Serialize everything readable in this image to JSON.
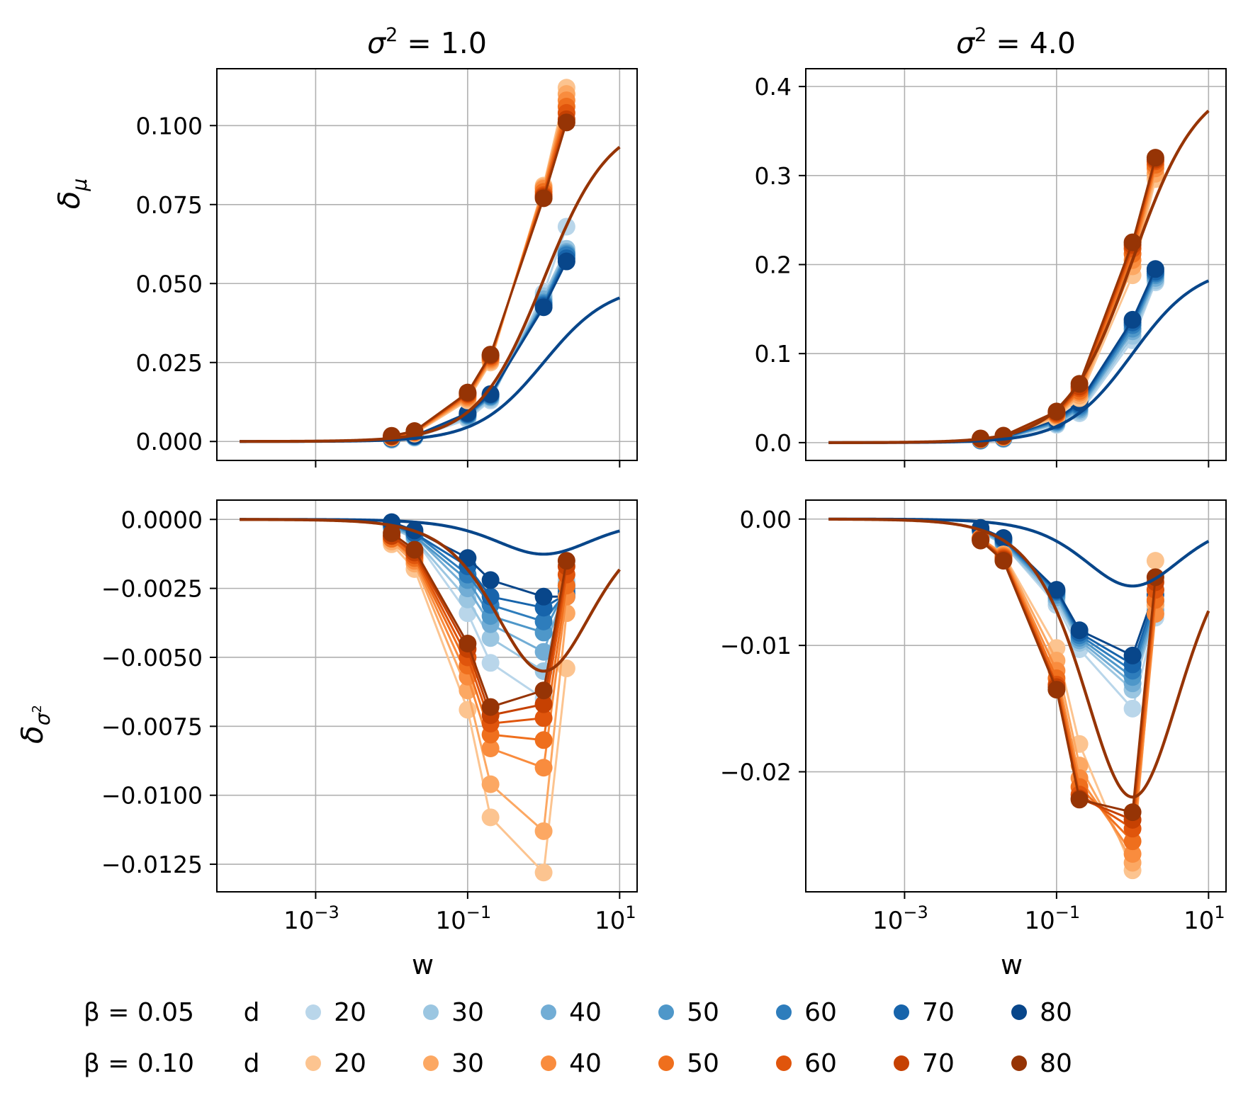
{
  "chart_data": {
    "type": "line",
    "x_label": "w",
    "x_scale": "log",
    "x_ticks": [
      0.001,
      0.1,
      10
    ],
    "x_tick_labels": [
      [
        "10",
        "−3"
      ],
      [
        "10",
        "−1"
      ],
      [
        "10",
        "1"
      ]
    ],
    "x_range_log10": [
      -4.3,
      1.23
    ],
    "sample_w": [
      0.01,
      0.02,
      0.1,
      0.2,
      1,
      2
    ],
    "colors": {
      "beta_005": [
        "#b9d6ea",
        "#9bc6e1",
        "#72add5",
        "#4e97c9",
        "#2e7dbc",
        "#1764ab",
        "#08468a"
      ],
      "beta_010": [
        "#fcc490",
        "#fca863",
        "#f98c3e",
        "#ef6f1d",
        "#e0550c",
        "#c64102",
        "#963405"
      ],
      "theory_005": "#08468a",
      "theory_010": "#963405"
    },
    "legend": {
      "beta_005_label": "β = 0.05",
      "beta_010_label": "β = 0.10",
      "d_label": "d",
      "d_values": [
        "20",
        "30",
        "40",
        "50",
        "60",
        "70",
        "80"
      ]
    },
    "panels": [
      {
        "id": "mu_s1",
        "title": "σ² = 1.0",
        "ylabel": "δμ",
        "ylim": [
          -0.006,
          0.118
        ],
        "y_ticks": [
          0,
          0.025,
          0.05,
          0.075,
          0.1
        ],
        "y_tick_labels": [
          "0.000",
          "0.025",
          "0.050",
          "0.075",
          "0.100"
        ],
        "theory": [
          {
            "beta": "0.05",
            "kind": "mu",
            "amp": 0.05
          },
          {
            "beta": "0.10",
            "kind": "mu",
            "amp": 0.1025
          }
        ],
        "groups": [
          {
            "beta": "0.05",
            "series": [
              [
                0.0005,
                0.0012,
                0.007,
                0.013,
                0.047,
                0.068
              ],
              [
                0.0006,
                0.0013,
                0.0075,
                0.0135,
                0.046,
                0.061
              ],
              [
                0.0007,
                0.0014,
                0.008,
                0.014,
                0.045,
                0.06
              ],
              [
                0.0008,
                0.0015,
                0.0082,
                0.0142,
                0.044,
                0.0595
              ],
              [
                0.0009,
                0.0016,
                0.0085,
                0.0145,
                0.0435,
                0.059
              ],
              [
                0.001,
                0.0017,
                0.0087,
                0.0148,
                0.043,
                0.058
              ],
              [
                0.001,
                0.0018,
                0.009,
                0.015,
                0.0425,
                0.057
              ]
            ]
          },
          {
            "beta": "0.10",
            "series": [
              [
                0.0012,
                0.0025,
                0.013,
                0.025,
                0.081,
                0.112
              ],
              [
                0.0013,
                0.0027,
                0.0135,
                0.0255,
                0.0805,
                0.11
              ],
              [
                0.0014,
                0.0028,
                0.014,
                0.026,
                0.08,
                0.108
              ],
              [
                0.0015,
                0.003,
                0.0145,
                0.0265,
                0.079,
                0.106
              ],
              [
                0.0016,
                0.0031,
                0.015,
                0.027,
                0.078,
                0.104
              ],
              [
                0.0017,
                0.0032,
                0.0152,
                0.0272,
                0.0775,
                0.102
              ],
              [
                0.0018,
                0.0033,
                0.0155,
                0.0275,
                0.077,
                0.101
              ]
            ]
          }
        ]
      },
      {
        "id": "mu_s4",
        "title": "σ² = 4.0",
        "ylabel": "",
        "ylim": [
          -0.02,
          0.42
        ],
        "y_ticks": [
          0,
          0.1,
          0.2,
          0.3,
          0.4
        ],
        "y_tick_labels": [
          "0.0",
          "0.1",
          "0.2",
          "0.3",
          "0.4"
        ],
        "theory": [
          {
            "beta": "0.05",
            "kind": "mu",
            "amp": 0.2
          },
          {
            "beta": "0.10",
            "kind": "mu",
            "amp": 0.41
          }
        ],
        "groups": [
          {
            "beta": "0.05",
            "series": [
              [
                0.002,
                0.004,
                0.02,
                0.033,
                0.115,
                0.18
              ],
              [
                0.0022,
                0.0043,
                0.021,
                0.035,
                0.12,
                0.182
              ],
              [
                0.0024,
                0.0046,
                0.022,
                0.037,
                0.125,
                0.185
              ],
              [
                0.0026,
                0.0049,
                0.023,
                0.039,
                0.128,
                0.188
              ],
              [
                0.0028,
                0.0052,
                0.024,
                0.041,
                0.132,
                0.19
              ],
              [
                0.003,
                0.0055,
                0.025,
                0.043,
                0.135,
                0.192
              ],
              [
                0.0032,
                0.0058,
                0.026,
                0.045,
                0.138,
                0.195
              ]
            ]
          },
          {
            "beta": "0.10",
            "series": [
              [
                0.0035,
                0.006,
                0.028,
                0.05,
                0.188,
                0.296
              ],
              [
                0.0037,
                0.0063,
                0.03,
                0.053,
                0.198,
                0.302
              ],
              [
                0.0039,
                0.0066,
                0.031,
                0.056,
                0.205,
                0.308
              ],
              [
                0.0041,
                0.0069,
                0.032,
                0.058,
                0.212,
                0.312
              ],
              [
                0.0043,
                0.0072,
                0.033,
                0.061,
                0.218,
                0.316
              ],
              [
                0.0045,
                0.0075,
                0.034,
                0.063,
                0.222,
                0.318
              ],
              [
                0.0047,
                0.0078,
                0.035,
                0.066,
                0.225,
                0.32
              ]
            ]
          }
        ]
      },
      {
        "id": "var_s1",
        "title": "",
        "ylabel": "δσ²",
        "ylim": [
          -0.0135,
          0.0007
        ],
        "y_ticks": [
          0,
          -0.0025,
          -0.005,
          -0.0075,
          -0.01,
          -0.0125
        ],
        "y_tick_labels": [
          "0.0000",
          "−0.0025",
          "−0.0050",
          "−0.0075",
          "−0.0100",
          "−0.0125"
        ],
        "theory": [
          {
            "beta": "0.05",
            "kind": "var",
            "amp": 0.00126
          },
          {
            "beta": "0.10",
            "kind": "var",
            "amp": 0.0055
          }
        ],
        "groups": [
          {
            "beta": "0.05",
            "series": [
              [
                -0.0003,
                -0.0007,
                -0.0034,
                -0.0052,
                -0.0065,
                -0.0022
              ],
              [
                -0.0003,
                -0.0007,
                -0.0029,
                -0.0043,
                -0.0055,
                -0.0023
              ],
              [
                -0.0003,
                -0.0006,
                -0.0025,
                -0.0038,
                -0.0048,
                -0.0024
              ],
              [
                -0.0002,
                -0.0006,
                -0.0022,
                -0.0035,
                -0.0041,
                -0.0025
              ],
              [
                -0.0002,
                -0.0005,
                -0.002,
                -0.0031,
                -0.0037,
                -0.0026
              ],
              [
                -0.0002,
                -0.0005,
                -0.0017,
                -0.0028,
                -0.0032,
                -0.0027
              ],
              [
                -0.0001,
                -0.0004,
                -0.0014,
                -0.0022,
                -0.0028,
                -0.0028
              ]
            ]
          },
          {
            "beta": "0.10",
            "series": [
              [
                -0.0009,
                -0.0018,
                -0.0069,
                -0.0108,
                -0.0128,
                -0.0054
              ],
              [
                -0.0008,
                -0.0016,
                -0.0062,
                -0.0096,
                -0.0113,
                -0.0034
              ],
              [
                -0.0007,
                -0.0015,
                -0.0057,
                -0.0083,
                -0.009,
                -0.0028
              ],
              [
                -0.0007,
                -0.0014,
                -0.0053,
                -0.0078,
                -0.008,
                -0.0024
              ],
              [
                -0.0006,
                -0.0013,
                -0.005,
                -0.0074,
                -0.0072,
                -0.002
              ],
              [
                -0.0006,
                -0.0012,
                -0.0047,
                -0.0071,
                -0.0067,
                -0.0017
              ],
              [
                -0.0005,
                -0.0011,
                -0.0045,
                -0.0068,
                -0.0062,
                -0.0015
              ]
            ]
          }
        ]
      },
      {
        "id": "var_s4",
        "title": "",
        "ylabel": "",
        "ylim": [
          -0.0295,
          0.0015
        ],
        "y_ticks": [
          0,
          -0.01,
          -0.02
        ],
        "y_tick_labels": [
          "0.00",
          "−0.01",
          "−0.02"
        ],
        "theory": [
          {
            "beta": "0.05",
            "kind": "var",
            "amp": 0.0053
          },
          {
            "beta": "0.10",
            "kind": "var",
            "amp": 0.022
          }
        ],
        "groups": [
          {
            "beta": "0.05",
            "series": [
              [
                -0.001,
                -0.002,
                -0.0068,
                -0.0103,
                -0.015,
                -0.0078
              ],
              [
                -0.001,
                -0.002,
                -0.0065,
                -0.0098,
                -0.0135,
                -0.0075
              ],
              [
                -0.0009,
                -0.0019,
                -0.0062,
                -0.0096,
                -0.013,
                -0.0072
              ],
              [
                -0.0009,
                -0.0018,
                -0.006,
                -0.0094,
                -0.0125,
                -0.0068
              ],
              [
                -0.0008,
                -0.0017,
                -0.0058,
                -0.0092,
                -0.012,
                -0.0065
              ],
              [
                -0.0008,
                -0.0016,
                -0.0057,
                -0.009,
                -0.0115,
                -0.006
              ],
              [
                -0.0007,
                -0.0015,
                -0.0056,
                -0.0088,
                -0.0108,
                -0.0056
              ]
            ]
          },
          {
            "beta": "0.10",
            "series": [
              [
                -0.0015,
                -0.0028,
                -0.0102,
                -0.0178,
                -0.0278,
                -0.0033
              ],
              [
                -0.0015,
                -0.0028,
                -0.0112,
                -0.0195,
                -0.0272,
                -0.0068
              ],
              [
                -0.0015,
                -0.0029,
                -0.012,
                -0.0205,
                -0.0265,
                -0.0075
              ],
              [
                -0.0016,
                -0.003,
                -0.0126,
                -0.0212,
                -0.0255,
                -0.0064
              ],
              [
                -0.0016,
                -0.0031,
                -0.0131,
                -0.0218,
                -0.0245,
                -0.0056
              ],
              [
                -0.0016,
                -0.0032,
                -0.0133,
                -0.0221,
                -0.0238,
                -0.005
              ],
              [
                -0.0017,
                -0.0033,
                -0.0135,
                -0.0222,
                -0.0232,
                -0.0046
              ]
            ]
          }
        ]
      }
    ]
  }
}
